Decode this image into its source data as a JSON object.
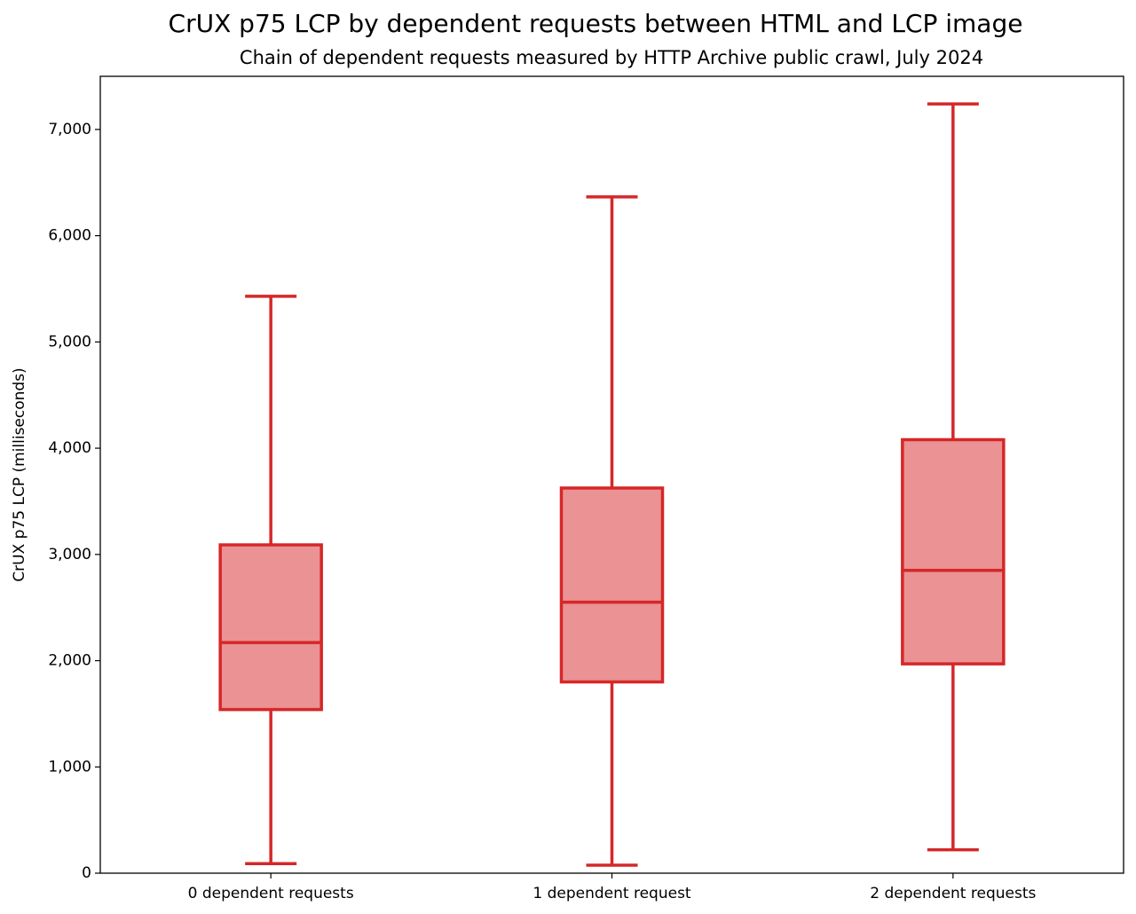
{
  "chart_data": {
    "type": "box",
    "title": "CrUX p75 LCP by dependent requests between HTML and LCP image",
    "subtitle": "Chain of dependent requests measured by HTTP Archive public crawl, July 2024",
    "y_label": "CrUX p75 LCP (milliseconds)",
    "categories": [
      "0 dependent requests",
      "1 dependent request",
      "2 dependent requests"
    ],
    "boxes": [
      {
        "whislo": 90,
        "q1": 1540,
        "med": 2170,
        "q3": 3090,
        "whishi": 5430
      },
      {
        "whislo": 75,
        "q1": 1800,
        "med": 2550,
        "q3": 3625,
        "whishi": 6365
      },
      {
        "whislo": 220,
        "q1": 1970,
        "med": 2850,
        "q3": 4080,
        "whishi": 7240
      }
    ],
    "color": "#d62728",
    "fill": "#ea9294",
    "ylim": [
      0,
      7500
    ],
    "yticks": [
      0,
      {
        "value": 1000,
        "label": "1,000"
      },
      {
        "value": 2000,
        "label": "2,000"
      },
      {
        "value": 3000,
        "label": "3,000"
      },
      {
        "value": 4000,
        "label": "4,000"
      },
      {
        "value": 5000,
        "label": "5,000"
      },
      {
        "value": 6000,
        "label": "6,000"
      },
      {
        "value": 7000,
        "label": "7,000"
      }
    ]
  }
}
